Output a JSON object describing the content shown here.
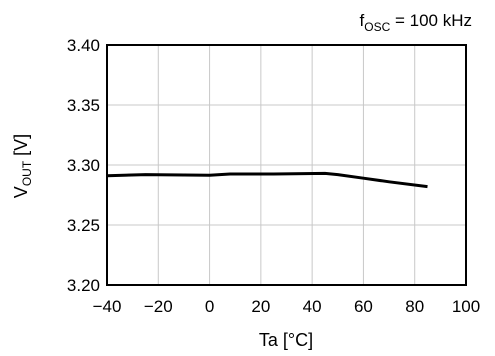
{
  "chart_data": {
    "type": "line",
    "condition_label": {
      "main": "f",
      "sub": "OSC",
      "rest": " = 100 kHz"
    },
    "xlabel": "Ta [°C]",
    "ylabel": {
      "main": "V",
      "sub": "OUT",
      "rest": " [V]"
    },
    "xlim": [
      -40,
      100
    ],
    "ylim": [
      3.2,
      3.4
    ],
    "x_ticks": [
      -40,
      -20,
      0,
      20,
      40,
      60,
      80,
      100
    ],
    "x_tick_labels": [
      "−40",
      "−20",
      "0",
      "20",
      "40",
      "60",
      "80",
      "100"
    ],
    "y_ticks": [
      3.2,
      3.25,
      3.3,
      3.35,
      3.4
    ],
    "y_tick_labels": [
      "3.20",
      "3.25",
      "3.30",
      "3.35",
      "3.40"
    ],
    "grid": true,
    "series": [
      {
        "color": "#000000",
        "x": [
          -40,
          -25,
          0,
          8,
          25,
          45,
          50,
          60,
          70,
          85
        ],
        "y": [
          3.291,
          3.292,
          3.2915,
          3.2925,
          3.2925,
          3.293,
          3.292,
          3.289,
          3.286,
          3.282
        ]
      }
    ]
  }
}
